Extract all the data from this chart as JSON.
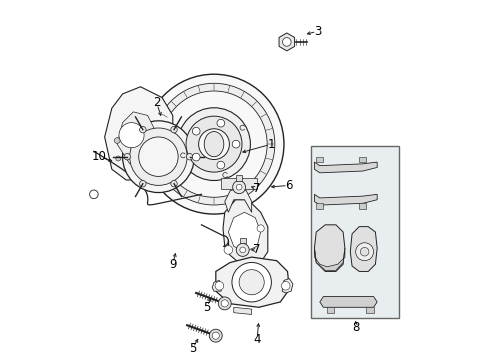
{
  "bg_color": "#ffffff",
  "line_color": "#222222",
  "label_color": "#000000",
  "box8_fill": "#e8eef0",
  "figsize": [
    4.89,
    3.6
  ],
  "dpi": 100,
  "labels": {
    "1": [
      0.575,
      0.6,
      0.485,
      0.575
    ],
    "2": [
      0.255,
      0.715,
      0.27,
      0.67
    ],
    "3": [
      0.705,
      0.915,
      0.665,
      0.905
    ],
    "4": [
      0.535,
      0.055,
      0.54,
      0.11
    ],
    "5a": [
      0.355,
      0.03,
      0.375,
      0.065
    ],
    "5b": [
      0.395,
      0.145,
      0.41,
      0.18
    ],
    "6": [
      0.625,
      0.485,
      0.565,
      0.48
    ],
    "7a": [
      0.535,
      0.305,
      0.51,
      0.305
    ],
    "7b": [
      0.535,
      0.475,
      0.51,
      0.485
    ],
    "8": [
      0.81,
      0.09,
      0.81,
      0.115
    ],
    "9": [
      0.3,
      0.265,
      0.31,
      0.305
    ],
    "10": [
      0.095,
      0.565,
      0.14,
      0.55
    ]
  }
}
